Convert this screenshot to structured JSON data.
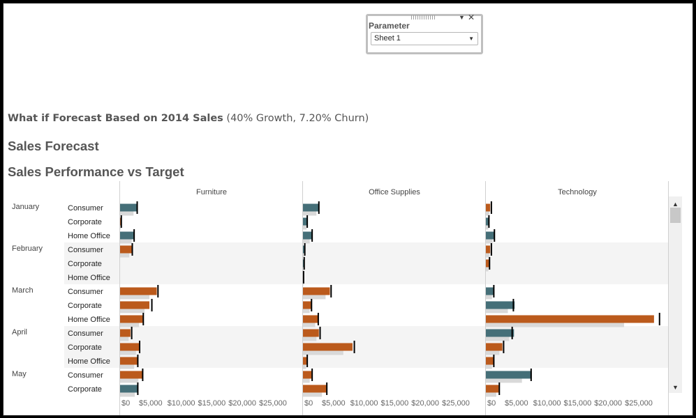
{
  "parameter": {
    "title": "Parameter",
    "value": "Sheet 1"
  },
  "subtitle": {
    "bold": "What if Forecast Based on 2014 Sales",
    "rest": "(40% Growth, 7.20% Churn)"
  },
  "titles": [
    "Sales Forecast",
    "Sales Performance vs Target"
  ],
  "colors": {
    "above_target": "#456f78",
    "below_target": "#bb5a1c",
    "reference": "#d9d9d9",
    "target_line": "#000000"
  },
  "chart_data": {
    "type": "bar",
    "columns": [
      "Furniture",
      "Office Supplies",
      "Technology"
    ],
    "x_ticks": [
      "$0",
      "$5,000",
      "$10,000",
      "$15,000",
      "$20,000",
      "$25,000"
    ],
    "xlim": [
      0,
      29000
    ],
    "rows": [
      {
        "month": "January",
        "segment": "Consumer",
        "sales": [
          2800,
          2600,
          700
        ],
        "reference": [
          2200,
          2200,
          600
        ],
        "target": [
          2800,
          2600,
          900
        ]
      },
      {
        "month": "",
        "segment": "Corporate",
        "sales": [
          100,
          700,
          500
        ],
        "reference": [
          100,
          600,
          400
        ],
        "target": [
          200,
          700,
          500
        ]
      },
      {
        "month": "",
        "segment": "Home Office",
        "sales": [
          2300,
          1500,
          1400
        ],
        "reference": [
          1900,
          1100,
          1100
        ],
        "target": [
          2300,
          1500,
          1400
        ]
      },
      {
        "month": "February",
        "segment": "Consumer",
        "sales": [
          1900,
          300,
          700
        ],
        "reference": [
          1500,
          300,
          600
        ],
        "target": [
          2000,
          300,
          900
        ]
      },
      {
        "month": "",
        "segment": "Corporate",
        "sales": [
          0,
          200,
          500
        ],
        "reference": [
          0,
          200,
          400
        ],
        "target": [
          0,
          200,
          600
        ]
      },
      {
        "month": "",
        "segment": "Home Office",
        "sales": [
          0,
          100,
          0
        ],
        "reference": [
          0,
          100,
          0
        ],
        "target": [
          0,
          100,
          0
        ]
      },
      {
        "month": "March",
        "segment": "Consumer",
        "sales": [
          6000,
          4400,
          1300
        ],
        "reference": [
          4800,
          3700,
          1000
        ],
        "target": [
          6200,
          4600,
          1300
        ]
      },
      {
        "month": "",
        "segment": "Corporate",
        "sales": [
          4800,
          1300,
          4700
        ],
        "reference": [
          4000,
          1100,
          3600
        ],
        "target": [
          5200,
          1400,
          4500
        ]
      },
      {
        "month": "",
        "segment": "Home Office",
        "sales": [
          3700,
          2400,
          27500
        ],
        "reference": [
          3100,
          2000,
          22600
        ],
        "target": [
          3800,
          2500,
          28400
        ]
      },
      {
        "month": "April",
        "segment": "Consumer",
        "sales": [
          1700,
          2600,
          4600
        ],
        "reference": [
          1400,
          2200,
          3800
        ],
        "target": [
          1900,
          2800,
          4300
        ]
      },
      {
        "month": "",
        "segment": "Corporate",
        "sales": [
          3100,
          8100,
          2700
        ],
        "reference": [
          2600,
          6600,
          2200
        ],
        "target": [
          3200,
          8400,
          2900
        ]
      },
      {
        "month": "",
        "segment": "Home Office",
        "sales": [
          2800,
          600,
          1200
        ],
        "reference": [
          2300,
          500,
          1000
        ],
        "target": [
          2900,
          700,
          1300
        ]
      },
      {
        "month": "May",
        "segment": "Consumer",
        "sales": [
          3600,
          1400,
          7500
        ],
        "reference": [
          3000,
          1100,
          5900
        ],
        "target": [
          3700,
          1500,
          7400
        ]
      },
      {
        "month": "",
        "segment": "Corporate",
        "sales": [
          2900,
          3800,
          2100
        ],
        "reference": [
          2400,
          3100,
          1700
        ],
        "target": [
          2900,
          3900,
          2200
        ]
      }
    ]
  }
}
